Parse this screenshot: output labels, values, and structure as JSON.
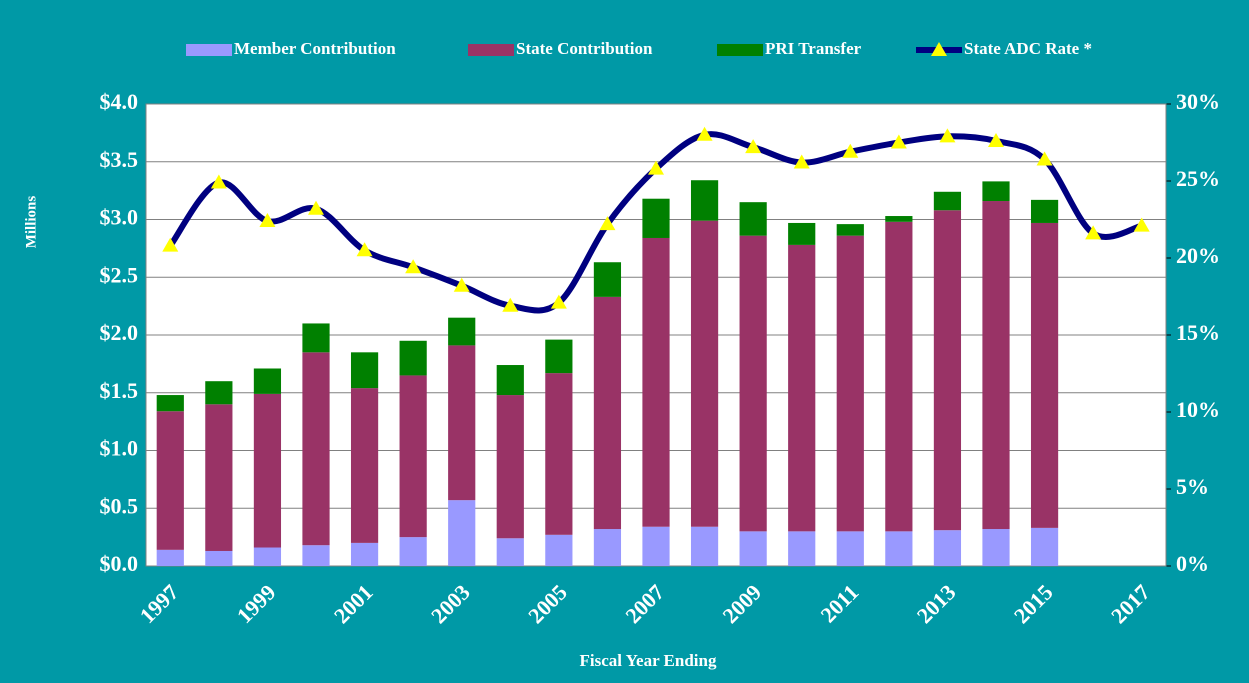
{
  "chart_data": {
    "type": "bar",
    "stacked": true,
    "y_label": "Millions",
    "x_label": "Fiscal Year Ending",
    "categories": [
      "1997",
      null,
      "1999",
      null,
      "2001",
      null,
      "2003",
      null,
      "2005",
      null,
      "2007",
      null,
      "2009",
      null,
      "2011",
      null,
      "2013",
      null,
      "2015",
      null,
      "2017"
    ],
    "series": [
      {
        "name": "Member Contribution",
        "type": "bar",
        "color": "#9999ff",
        "values": [
          0.14,
          0.13,
          0.16,
          0.18,
          0.2,
          0.25,
          0.57,
          0.24,
          0.27,
          0.32,
          0.34,
          0.34,
          0.3,
          0.3,
          0.3,
          0.3,
          0.31,
          0.32,
          0.33,
          null,
          null
        ]
      },
      {
        "name": "State Contribution",
        "type": "bar",
        "color": "#993366",
        "values": [
          1.2,
          1.27,
          1.33,
          1.67,
          1.34,
          1.4,
          1.34,
          1.24,
          1.4,
          2.01,
          2.5,
          2.65,
          2.56,
          2.48,
          2.56,
          2.68,
          2.77,
          2.84,
          2.64,
          null,
          null
        ]
      },
      {
        "name": "PRI Transfer",
        "type": "bar",
        "color": "#008000",
        "values": [
          0.14,
          0.2,
          0.22,
          0.25,
          0.31,
          0.3,
          0.24,
          0.26,
          0.29,
          0.3,
          0.34,
          0.35,
          0.29,
          0.19,
          0.1,
          0.05,
          0.16,
          0.17,
          0.2,
          null,
          null
        ]
      },
      {
        "name": "State ADC Rate *",
        "type": "line",
        "axis": "y2",
        "color": "#000080",
        "marker_color": "#ffff00",
        "values": [
          20.8,
          24.9,
          22.4,
          23.2,
          20.5,
          19.4,
          18.2,
          16.9,
          17.1,
          22.2,
          25.8,
          28.0,
          27.2,
          26.2,
          26.9,
          27.5,
          27.9,
          27.6,
          26.4,
          21.6,
          22.1
        ]
      }
    ],
    "ylim": [
      0,
      4
    ],
    "yticks": [
      {
        "value": 0,
        "label": "$0.0"
      },
      {
        "value": 0.5,
        "label": "$0.5"
      },
      {
        "value": 1,
        "label": "$1.0"
      },
      {
        "value": 1.5,
        "label": "$1.5"
      },
      {
        "value": 2,
        "label": "$2.0"
      },
      {
        "value": 2.5,
        "label": "$2.5"
      },
      {
        "value": 3,
        "label": "$3.0"
      },
      {
        "value": 3.5,
        "label": "$3.5"
      },
      {
        "value": 4,
        "label": "$4.0"
      }
    ],
    "y2lim": [
      0,
      30
    ],
    "y2ticks": [
      {
        "value": 0,
        "label": "0%"
      },
      {
        "value": 5,
        "label": "5%"
      },
      {
        "value": 10,
        "label": "10%"
      },
      {
        "value": 15,
        "label": "15%"
      },
      {
        "value": 20,
        "label": "20%"
      },
      {
        "value": 25,
        "label": "25%"
      },
      {
        "value": 30,
        "label": "30%"
      }
    ],
    "grid": true,
    "legend": "top"
  }
}
